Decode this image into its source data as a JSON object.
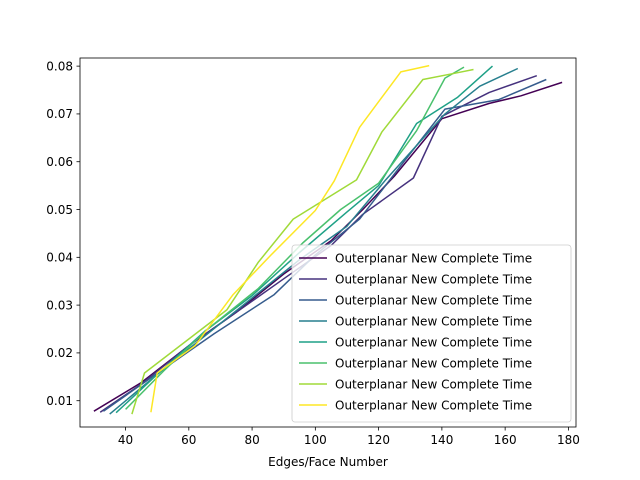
{
  "chart_data": {
    "type": "line",
    "title": "",
    "xlabel": "Edges/Face Number",
    "ylabel": "",
    "xlim": [
      25.6,
      182.4
    ],
    "ylim": [
      0.0045,
      0.0817
    ],
    "xticks": [
      40,
      60,
      80,
      100,
      120,
      140,
      160,
      180
    ],
    "yticks": [
      0.01,
      0.02,
      0.03,
      0.04,
      0.05,
      0.06,
      0.07,
      0.08
    ],
    "xtick_labels": [
      "40",
      "60",
      "80",
      "100",
      "120",
      "140",
      "160",
      "180"
    ],
    "ytick_labels": [
      "0.01",
      "0.02",
      "0.03",
      "0.04",
      "0.05",
      "0.06",
      "0.07",
      "0.08"
    ],
    "grid": false,
    "legend_position": "lower-right",
    "series": [
      {
        "name": "Outerplanar New Complete Time",
        "color": "#440154",
        "x": [
          30,
          45,
          60,
          75,
          90,
          105,
          115,
          125,
          140,
          155,
          165,
          178
        ],
        "y": [
          0.0078,
          0.0138,
          0.0215,
          0.0285,
          0.0365,
          0.0435,
          0.05,
          0.057,
          0.069,
          0.0722,
          0.0738,
          0.0766
        ]
      },
      {
        "name": "Outerplanar New Complete Time",
        "color": "#46327e",
        "x": [
          32,
          45,
          60,
          75,
          90,
          105,
          115,
          131,
          140,
          155,
          170
        ],
        "y": [
          0.0076,
          0.0135,
          0.0215,
          0.0285,
          0.0355,
          0.0425,
          0.049,
          0.0566,
          0.0695,
          0.0745,
          0.078
        ]
      },
      {
        "name": "Outerplanar New Complete Time",
        "color": "#365c8d",
        "x": [
          33,
          48,
          68,
          87,
          100,
          114,
          128,
          141,
          158,
          173
        ],
        "y": [
          0.0078,
          0.0148,
          0.024,
          0.0322,
          0.0405,
          0.048,
          0.06,
          0.071,
          0.073,
          0.0772
        ]
      },
      {
        "name": "Outerplanar New Complete Time",
        "color": "#277f8e",
        "x": [
          35,
          50,
          65,
          80,
          95,
          110,
          122,
          141,
          152,
          164
        ],
        "y": [
          0.0072,
          0.0155,
          0.0235,
          0.0315,
          0.0395,
          0.0465,
          0.056,
          0.07,
          0.0758,
          0.0795
        ]
      },
      {
        "name": "Outerplanar New Complete Time",
        "color": "#1fa187",
        "x": [
          37,
          50,
          65,
          80,
          95,
          110,
          120,
          132,
          145,
          156
        ],
        "y": [
          0.0075,
          0.0155,
          0.0245,
          0.032,
          0.041,
          0.0495,
          0.055,
          0.068,
          0.0735,
          0.08
        ]
      },
      {
        "name": "Outerplanar New Complete Time",
        "color": "#4ac16d",
        "x": [
          40,
          52,
          66,
          82,
          96,
          108,
          120,
          132,
          141,
          147
        ],
        "y": [
          0.0082,
          0.0162,
          0.025,
          0.0335,
          0.043,
          0.05,
          0.0555,
          0.0665,
          0.0775,
          0.0798
        ]
      },
      {
        "name": "Outerplanar New Complete Time",
        "color": "#a0da39",
        "x": [
          42,
          46,
          72,
          82,
          93,
          113,
          121,
          134,
          144,
          150
        ],
        "y": [
          0.0072,
          0.0158,
          0.029,
          0.039,
          0.048,
          0.0562,
          0.0662,
          0.0772,
          0.0785,
          0.0793
        ]
      },
      {
        "name": "Outerplanar New Complete Time",
        "color": "#fde725",
        "x": [
          48,
          50,
          62,
          74,
          86,
          100,
          106,
          114,
          127,
          136
        ],
        "y": [
          0.0076,
          0.0158,
          0.0215,
          0.0322,
          0.0405,
          0.0498,
          0.056,
          0.0672,
          0.0788,
          0.0801
        ]
      }
    ]
  }
}
